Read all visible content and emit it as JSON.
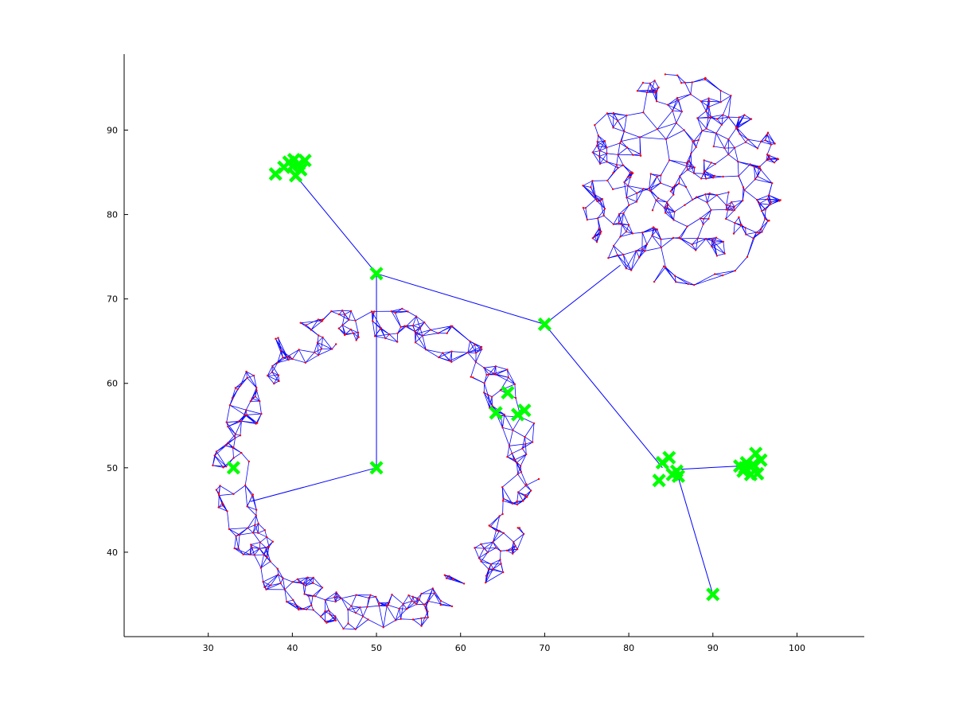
{
  "chart_data": {
    "type": "scatter",
    "title": "",
    "xlabel": "",
    "ylabel": "",
    "xlim": [
      20,
      108
    ],
    "ylim": [
      30,
      99
    ],
    "grid": false,
    "xticks": [
      30,
      40,
      50,
      60,
      70,
      80,
      90,
      100
    ],
    "yticks": [
      40,
      50,
      60,
      70,
      80,
      90
    ],
    "colors": {
      "graph_edges": "#0000ff",
      "graph_nodes": "#ff0000",
      "markers": "#00ff00",
      "tree_edges": "#0000ff",
      "axes": "#000000"
    },
    "ring": {
      "center": [
        50,
        50
      ],
      "inner_radius": 15,
      "outer_radius": 19.5,
      "points": 360,
      "gap_angles_deg": [
        -40,
        0
      ]
    },
    "blob": {
      "center": [
        86,
        84
      ],
      "radius": 12.5,
      "points": 300
    },
    "markers": [
      [
        33,
        50
      ],
      [
        50,
        50
      ],
      [
        50,
        73
      ],
      [
        70,
        67
      ],
      [
        90,
        35
      ],
      [
        38,
        84.8
      ],
      [
        39,
        85.6
      ],
      [
        39.6,
        86.2
      ],
      [
        40.4,
        84.6
      ],
      [
        40,
        85.7
      ],
      [
        40.8,
        86
      ],
      [
        41.5,
        86.4
      ],
      [
        40.2,
        86.5
      ],
      [
        41,
        85.3
      ],
      [
        64.2,
        56.5
      ],
      [
        65.6,
        58.9
      ],
      [
        66.8,
        56.3
      ],
      [
        67.6,
        56.8
      ],
      [
        83.6,
        48.5
      ],
      [
        84,
        50.6
      ],
      [
        84.8,
        51.2
      ],
      [
        85.2,
        49.2
      ],
      [
        85.7,
        49.6
      ],
      [
        85.9,
        49.0
      ],
      [
        93.2,
        50.2
      ],
      [
        93.6,
        49.6
      ],
      [
        94,
        50.6
      ],
      [
        94.5,
        49.2
      ],
      [
        94.8,
        50.4
      ],
      [
        95.1,
        51.7
      ],
      [
        95.3,
        49.3
      ],
      [
        95.7,
        50.9
      ],
      [
        93.8,
        50.0
      ]
    ],
    "tree_edges": [
      [
        [
          50,
          73
        ],
        [
          40.4,
          84.6
        ]
      ],
      [
        [
          50,
          73
        ],
        [
          70,
          67
        ]
      ],
      [
        [
          50,
          73
        ],
        [
          50,
          50
        ]
      ],
      [
        [
          50,
          50
        ],
        [
          35,
          46
        ]
      ],
      [
        [
          70,
          67
        ],
        [
          79,
          74
        ]
      ],
      [
        [
          70,
          67
        ],
        [
          84,
          50
        ]
      ],
      [
        [
          85.6,
          49.8
        ],
        [
          93,
          50.2
        ]
      ],
      [
        [
          85.6,
          49.8
        ],
        [
          90,
          35
        ]
      ]
    ]
  }
}
